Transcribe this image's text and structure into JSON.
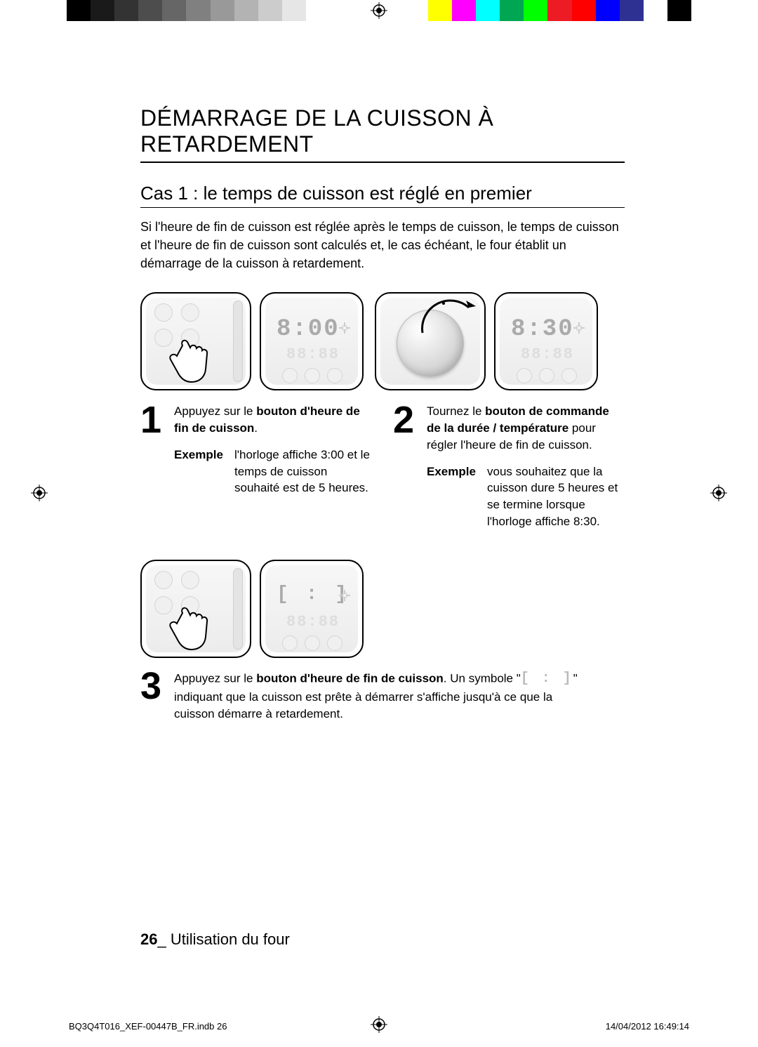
{
  "colorbar": {
    "left_swatches": [
      "#000000",
      "#1a1a1a",
      "#333333",
      "#4d4d4d",
      "#666666",
      "#808080",
      "#999999",
      "#b3b3b3",
      "#cccccc",
      "#e6e6e6",
      "#ffffff"
    ],
    "right_swatches": [
      "#ffff00",
      "#ff00ff",
      "#00ffff",
      "#00a651",
      "#00ff00",
      "#ed1c24",
      "#ff0000",
      "#0000ff",
      "#2e3192",
      "#ffffff",
      "#000000"
    ]
  },
  "section_title": "DÉMARRAGE DE LA CUISSON À RETARDEMENT",
  "case_title": "Cas 1 : le temps de cuisson est réglé en premier",
  "intro": "Si l'heure de fin de cuisson est réglée après le temps de cuisson, le temps de cuisson et l'heure de fin de cuisson sont calculés et, le cas échéant, le four établit un démarrage de la cuisson à retardement.",
  "step1": {
    "num": "1",
    "text_pre": "Appuyez sur le ",
    "text_bold": "bouton d'heure de fin de cuisson",
    "text_post": ".",
    "example_label": "Exemple",
    "example_text": "l'horloge affiche 3:00 et le temps de cuisson souhaité est de 5 heures.",
    "display_main": "8:00",
    "display_sub": "88:88"
  },
  "step2": {
    "num": "2",
    "text_pre": "Tournez le ",
    "text_bold": "bouton de commande de la durée / température",
    "text_post": " pour régler l'heure de fin de cuisson.",
    "example_label": "Exemple",
    "example_text": "vous souhaitez que la cuisson dure 5 heures et se termine lorsque l'horloge affiche 8:30.",
    "display_main": "8:30",
    "display_sub": "88:88"
  },
  "step3": {
    "num": "3",
    "text_pre": "Appuyez sur le ",
    "text_bold": "bouton d'heure de fin de cuisson",
    "text_mid": ". Un symbole \"",
    "symbol": "[ : ]",
    "text_post": "\" indiquant que la cuisson est prête à démarrer s'affiche jusqu'à ce que la cuisson démarre à retardement.",
    "display_main": "[ : ]",
    "display_sub": "88:88"
  },
  "footer": {
    "page_num": "26",
    "separator": "_ ",
    "chapter": "Utilisation du four"
  },
  "print_footer": {
    "left": "BQ3Q4T016_XEF-00447B_FR.indb   26",
    "right": "14/04/2012   16:49:14"
  }
}
